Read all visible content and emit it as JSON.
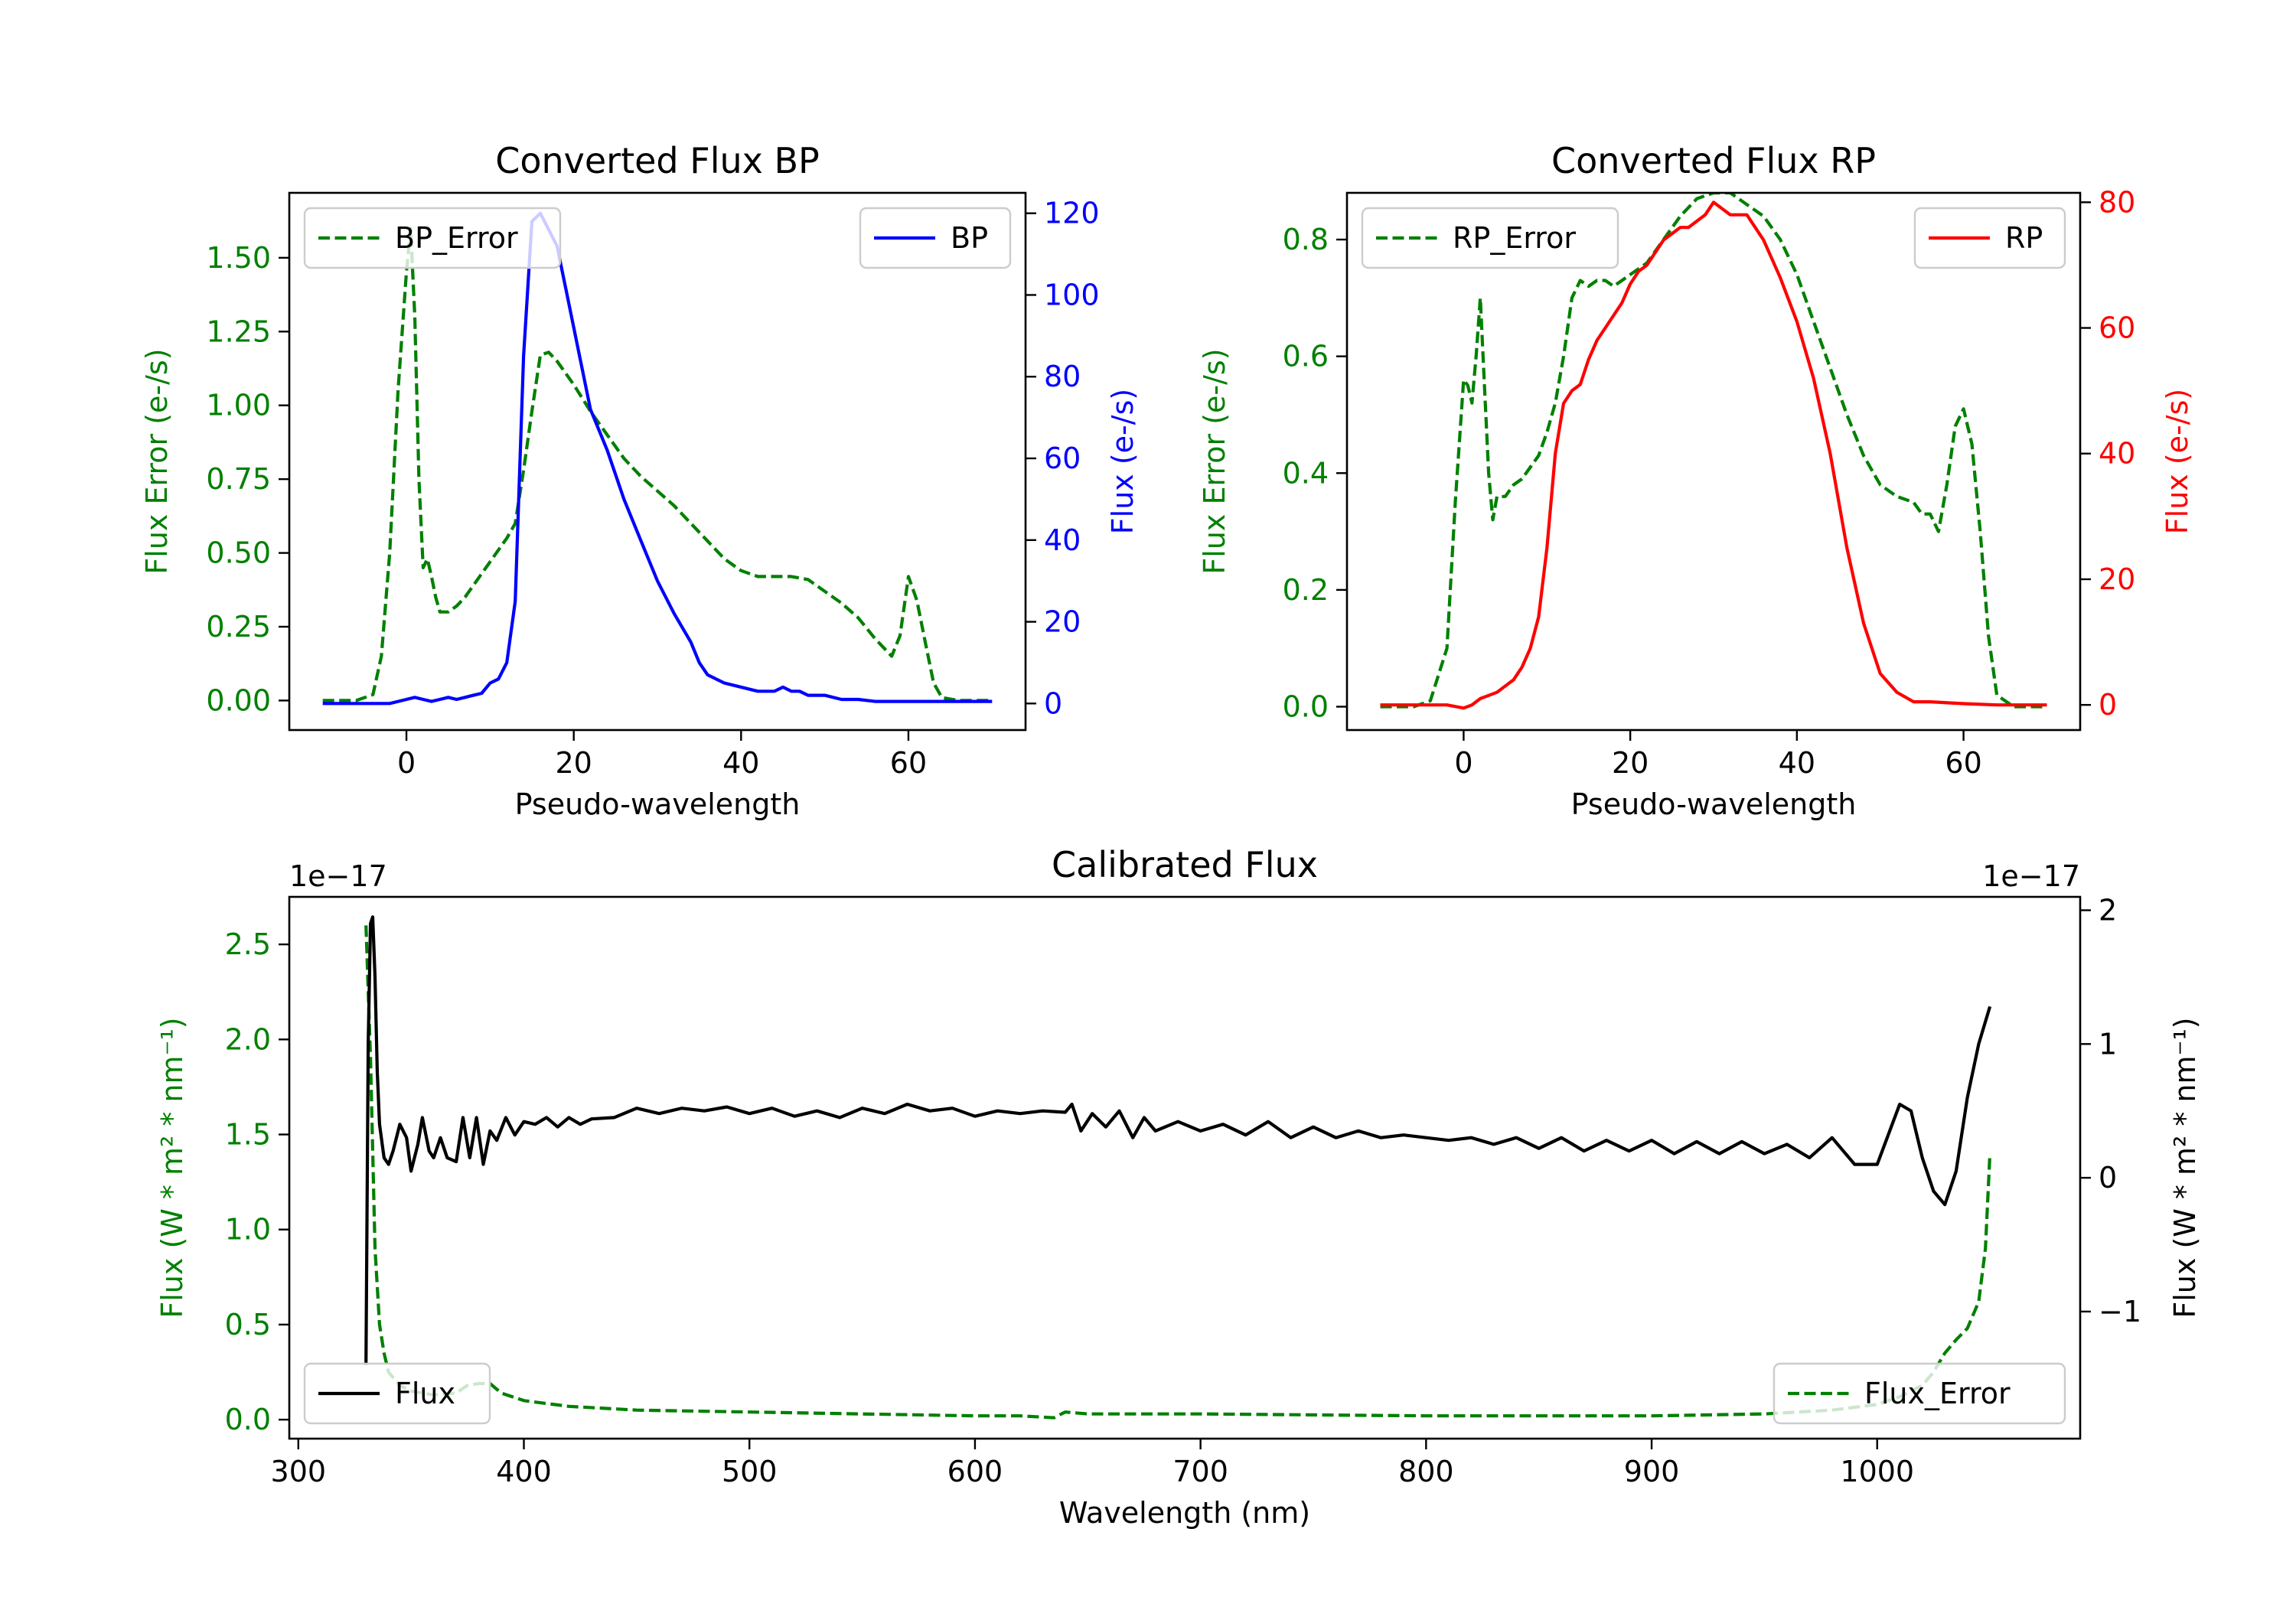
{
  "chart_data": [
    {
      "type": "line",
      "title": "Converted Flux BP",
      "xlabel": "Pseudo-wavelength",
      "ylabel_left": "Flux Error (e-/s)",
      "ylabel_right": "Flux (e-/s)",
      "xlim": [
        -14,
        74
      ],
      "ylim_left": [
        -0.1,
        1.72
      ],
      "ylim_right": [
        -6.5,
        125
      ],
      "xticks": [
        0,
        20,
        40,
        60
      ],
      "yticks_left": [
        0.0,
        0.25,
        0.5,
        0.75,
        1.0,
        1.25,
        1.5
      ],
      "ytick_labels_left": [
        "0.00",
        "0.25",
        "0.50",
        "0.75",
        "1.00",
        "1.25",
        "1.50"
      ],
      "yticks_right": [
        0,
        20,
        40,
        60,
        80,
        100,
        120
      ],
      "ytick_labels_right": [
        "0",
        "20",
        "40",
        "60",
        "80",
        "100",
        "120"
      ],
      "left_axis_color": "#008000",
      "right_axis_color": "#0000ff",
      "legend_left": {
        "label": "BP_Error",
        "position": "upper left"
      },
      "legend_right": {
        "label": "BP",
        "position": "upper right"
      },
      "series": [
        {
          "name": "BP_Error",
          "axis": "left",
          "color": "#008000",
          "style": "dashed",
          "x": [
            -10,
            -6,
            -4,
            -3,
            -2,
            -1,
            0,
            0.5,
            1,
            1.5,
            2,
            2.5,
            3,
            3.5,
            4,
            5,
            6,
            7,
            8,
            9,
            10,
            11,
            12,
            13,
            14,
            15,
            16,
            17,
            18,
            20,
            22,
            24,
            26,
            28,
            30,
            32,
            34,
            36,
            38,
            40,
            42,
            44,
            46,
            48,
            50,
            52,
            54,
            56,
            57,
            58,
            59,
            60,
            61,
            62,
            63,
            64,
            66,
            70
          ],
          "y": [
            0.0,
            0.0,
            0.02,
            0.15,
            0.5,
            1.05,
            1.45,
            1.6,
            1.3,
            0.75,
            0.45,
            0.48,
            0.42,
            0.35,
            0.3,
            0.3,
            0.32,
            0.35,
            0.39,
            0.43,
            0.47,
            0.51,
            0.55,
            0.6,
            0.78,
            0.98,
            1.17,
            1.18,
            1.15,
            1.07,
            0.98,
            0.9,
            0.82,
            0.76,
            0.71,
            0.66,
            0.6,
            0.54,
            0.48,
            0.44,
            0.42,
            0.42,
            0.42,
            0.41,
            0.37,
            0.33,
            0.28,
            0.21,
            0.18,
            0.15,
            0.22,
            0.42,
            0.34,
            0.2,
            0.06,
            0.01,
            0.0,
            0.0
          ]
        },
        {
          "name": "BP",
          "axis": "right",
          "color": "#0000ff",
          "style": "solid",
          "x": [
            -10,
            -6,
            -4,
            -2,
            0,
            1,
            2,
            3,
            4,
            5,
            6,
            7,
            8,
            9,
            10,
            11,
            12,
            13,
            14,
            15,
            16,
            17,
            18,
            19,
            20,
            21,
            22,
            24,
            26,
            28,
            30,
            32,
            34,
            35,
            36,
            37,
            38,
            40,
            42,
            44,
            45,
            46,
            47,
            48,
            50,
            52,
            54,
            56,
            58,
            60,
            62,
            64,
            66,
            70
          ],
          "y": [
            0,
            0,
            0,
            0,
            1,
            1.5,
            1,
            0.5,
            1,
            1.5,
            1,
            1.5,
            2,
            2.5,
            5,
            6,
            10,
            25,
            85,
            118,
            120,
            116,
            112,
            102,
            92,
            82,
            72,
            62,
            50,
            40,
            30,
            22,
            15,
            10,
            7,
            6,
            5,
            4,
            3,
            3,
            4,
            3,
            3,
            2,
            2,
            1,
            1,
            0.5,
            0.5,
            0.5,
            0.5,
            0.5,
            0.5,
            0.5
          ]
        }
      ]
    },
    {
      "type": "line",
      "title": "Converted Flux RP",
      "xlabel": "Pseudo-wavelength",
      "ylabel_left": "Flux Error (e-/s)",
      "ylabel_right": "Flux (e-/s)",
      "xlim": [
        -14,
        74
      ],
      "ylim_left": [
        -0.04,
        0.88
      ],
      "ylim_right": [
        -4,
        81.5
      ],
      "xticks": [
        0,
        20,
        40,
        60
      ],
      "yticks_left": [
        0.0,
        0.2,
        0.4,
        0.6,
        0.8
      ],
      "ytick_labels_left": [
        "0.0",
        "0.2",
        "0.4",
        "0.6",
        "0.8"
      ],
      "yticks_right": [
        0,
        20,
        40,
        60,
        80
      ],
      "ytick_labels_right": [
        "0",
        "20",
        "40",
        "60",
        "80"
      ],
      "left_axis_color": "#008000",
      "right_axis_color": "#ff0000",
      "legend_left": {
        "label": "RP_Error",
        "position": "upper left"
      },
      "legend_right": {
        "label": "RP",
        "position": "upper right"
      },
      "series": [
        {
          "name": "RP_Error",
          "axis": "left",
          "color": "#008000",
          "style": "dashed",
          "x": [
            -10,
            -6,
            -4,
            -2,
            -1,
            0,
            0.5,
            1,
            1.5,
            2,
            2.5,
            3,
            3.5,
            4,
            5,
            6,
            7,
            8,
            9,
            10,
            11,
            12,
            13,
            14,
            15,
            16,
            17,
            18,
            19,
            20,
            22,
            24,
            26,
            28,
            30,
            32,
            34,
            36,
            38,
            40,
            42,
            44,
            46,
            48,
            50,
            52,
            54,
            55,
            56,
            57,
            58,
            59,
            60,
            61,
            62,
            63,
            64,
            66,
            70
          ],
          "y": [
            0.0,
            0.0,
            0.01,
            0.1,
            0.35,
            0.56,
            0.55,
            0.52,
            0.6,
            0.7,
            0.55,
            0.4,
            0.32,
            0.36,
            0.36,
            0.38,
            0.39,
            0.41,
            0.43,
            0.47,
            0.52,
            0.6,
            0.7,
            0.73,
            0.72,
            0.73,
            0.73,
            0.72,
            0.73,
            0.74,
            0.76,
            0.8,
            0.84,
            0.87,
            0.88,
            0.88,
            0.86,
            0.84,
            0.8,
            0.74,
            0.66,
            0.58,
            0.5,
            0.43,
            0.38,
            0.36,
            0.35,
            0.33,
            0.33,
            0.3,
            0.38,
            0.48,
            0.51,
            0.45,
            0.3,
            0.12,
            0.02,
            0.0,
            0.0
          ]
        },
        {
          "name": "RP",
          "axis": "right",
          "color": "#ff0000",
          "style": "solid",
          "x": [
            -10,
            -6,
            -4,
            -2,
            0,
            1,
            2,
            3,
            4,
            5,
            6,
            7,
            8,
            9,
            10,
            11,
            12,
            13,
            14,
            15,
            16,
            17,
            18,
            19,
            20,
            21,
            22,
            23,
            24,
            25,
            26,
            27,
            28,
            29,
            30,
            31,
            32,
            33,
            34,
            35,
            36,
            37,
            38,
            40,
            42,
            44,
            46,
            48,
            50,
            52,
            54,
            56,
            60,
            64,
            70
          ],
          "y": [
            0,
            0,
            0,
            0,
            -0.5,
            0,
            1,
            1.5,
            2,
            3,
            4,
            6,
            9,
            14,
            25,
            40,
            48,
            50,
            51,
            55,
            58,
            60,
            62,
            64,
            67,
            69,
            70,
            72,
            74,
            75,
            76,
            76,
            77,
            78,
            80,
            79,
            78,
            78,
            78,
            76,
            74,
            71,
            68,
            61,
            52,
            40,
            25,
            13,
            5,
            2,
            0.5,
            0.5,
            0.2,
            0,
            0
          ]
        }
      ]
    },
    {
      "type": "line",
      "title": "Calibrated Flux",
      "xlabel": "Wavelength (nm)",
      "ylabel_left": "Flux (W * m² * nm⁻¹)",
      "ylabel_right": "Flux (W * m² * nm⁻¹)",
      "offset_text_left": "1e−17",
      "offset_text_right": "1e−17",
      "xlim": [
        296,
        1090
      ],
      "ylim_left": [
        -0.1,
        2.75
      ],
      "ylim_right": [
        -1.95,
        2.1
      ],
      "xticks": [
        300,
        400,
        500,
        600,
        700,
        800,
        900,
        1000
      ],
      "yticks_left": [
        0.0,
        0.5,
        1.0,
        1.5,
        2.0,
        2.5
      ],
      "ytick_labels_left": [
        "0.0",
        "0.5",
        "1.0",
        "1.5",
        "2.0",
        "2.5"
      ],
      "yticks_right": [
        -1,
        0,
        1,
        2
      ],
      "ytick_labels_right": [
        "−1",
        "0",
        "1",
        "2"
      ],
      "left_axis_color": "#008000",
      "right_axis_color": "#000000",
      "legend_left": {
        "label": "Flux",
        "position": "lower left"
      },
      "legend_right": {
        "label": "Flux_Error",
        "position": "lower right"
      },
      "series": [
        {
          "name": "Flux_Error",
          "axis": "left",
          "color": "#008000",
          "style": "dashed",
          "x": [
            330,
            332,
            334,
            336,
            338,
            340,
            345,
            350,
            360,
            370,
            375,
            380,
            385,
            390,
            400,
            420,
            450,
            500,
            550,
            600,
            620,
            635,
            640,
            650,
            700,
            800,
            900,
            950,
            980,
            1000,
            1010,
            1020,
            1025,
            1030,
            1035,
            1040,
            1045,
            1048,
            1050
          ],
          "y": [
            2.6,
            1.9,
            0.9,
            0.5,
            0.35,
            0.25,
            0.18,
            0.15,
            0.13,
            0.14,
            0.18,
            0.19,
            0.19,
            0.14,
            0.1,
            0.07,
            0.05,
            0.04,
            0.03,
            0.02,
            0.02,
            0.01,
            0.04,
            0.03,
            0.03,
            0.02,
            0.02,
            0.03,
            0.05,
            0.08,
            0.12,
            0.18,
            0.25,
            0.35,
            0.42,
            0.48,
            0.62,
            0.9,
            1.4
          ]
        },
        {
          "name": "Flux",
          "axis": "right",
          "color": "#000000",
          "style": "solid",
          "x": [
            330,
            331,
            332,
            333,
            334,
            335,
            336,
            338,
            340,
            342,
            345,
            348,
            350,
            353,
            355,
            358,
            360,
            363,
            366,
            370,
            373,
            376,
            379,
            382,
            385,
            388,
            392,
            396,
            400,
            405,
            410,
            415,
            420,
            425,
            430,
            440,
            450,
            460,
            470,
            480,
            490,
            500,
            510,
            520,
            530,
            540,
            550,
            560,
            570,
            580,
            590,
            600,
            610,
            620,
            630,
            640,
            643,
            647,
            652,
            658,
            664,
            670,
            675,
            680,
            690,
            700,
            710,
            720,
            730,
            740,
            750,
            760,
            770,
            780,
            790,
            800,
            810,
            820,
            830,
            840,
            850,
            860,
            870,
            880,
            890,
            900,
            910,
            920,
            930,
            940,
            950,
            960,
            970,
            980,
            990,
            1000,
            1010,
            1015,
            1020,
            1025,
            1030,
            1035,
            1040,
            1045,
            1050
          ],
          "y": [
            -1.4,
            1.0,
            1.9,
            1.95,
            1.5,
            0.8,
            0.4,
            0.15,
            0.1,
            0.2,
            0.4,
            0.3,
            0.05,
            0.25,
            0.45,
            0.2,
            0.15,
            0.3,
            0.15,
            0.12,
            0.45,
            0.15,
            0.45,
            0.1,
            0.35,
            0.28,
            0.45,
            0.32,
            0.42,
            0.4,
            0.45,
            0.38,
            0.45,
            0.4,
            0.44,
            0.45,
            0.52,
            0.48,
            0.52,
            0.5,
            0.53,
            0.48,
            0.52,
            0.46,
            0.5,
            0.45,
            0.52,
            0.48,
            0.55,
            0.5,
            0.52,
            0.46,
            0.5,
            0.48,
            0.5,
            0.49,
            0.55,
            0.35,
            0.48,
            0.38,
            0.5,
            0.3,
            0.45,
            0.35,
            0.42,
            0.35,
            0.4,
            0.32,
            0.42,
            0.3,
            0.38,
            0.3,
            0.35,
            0.3,
            0.32,
            0.3,
            0.28,
            0.3,
            0.25,
            0.3,
            0.22,
            0.3,
            0.2,
            0.28,
            0.2,
            0.28,
            0.18,
            0.27,
            0.18,
            0.27,
            0.18,
            0.25,
            0.15,
            0.3,
            0.1,
            0.1,
            0.55,
            0.5,
            0.15,
            -0.1,
            -0.2,
            0.05,
            0.6,
            1.0,
            1.28
          ]
        }
      ]
    }
  ]
}
